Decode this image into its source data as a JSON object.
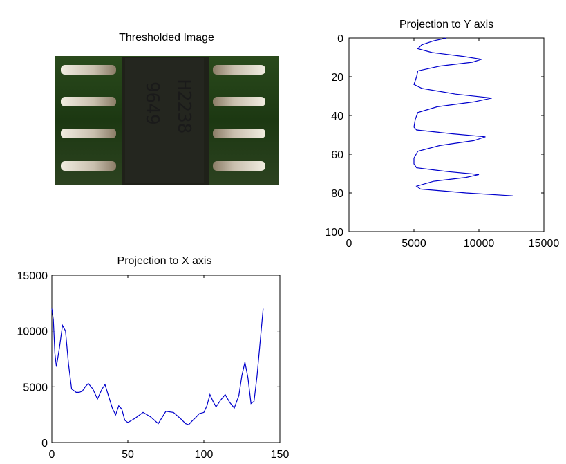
{
  "image_panel": {
    "title": "Thresholded Image",
    "chip_marking_1": "H2238",
    "chip_marking_2": "9649"
  },
  "colors": {
    "line": "#0000cc",
    "axis": "#000000",
    "chip_body": "#202219",
    "board": "#1f3d14",
    "pin": "#d8d0c0"
  },
  "chart_data": [
    {
      "type": "line",
      "title": "Projection to Y axis",
      "orientation": "vertical-profile",
      "xlim": [
        0,
        15000
      ],
      "ylim": [
        100,
        0
      ],
      "y_direction": "reversed",
      "xticks": [
        0,
        5000,
        10000,
        15000
      ],
      "yticks": [
        0,
        20,
        40,
        60,
        80,
        100
      ],
      "series": [
        {
          "x": [
            7500,
            6500,
            5600,
            5300,
            6400,
            8800,
            10200,
            9500,
            7000,
            5300,
            5200,
            5000,
            5600,
            8200,
            11000,
            9600,
            6800,
            5300,
            5100,
            5000,
            5200,
            8000,
            10500,
            9600,
            7000,
            5300,
            5000,
            5000,
            5200,
            7600,
            10000,
            9000,
            6500,
            5200,
            5500,
            9000,
            12600
          ],
          "y": [
            0,
            1.5,
            3.5,
            5.5,
            7.5,
            9.5,
            11,
            12.5,
            14.5,
            17,
            20,
            24,
            26,
            29,
            31,
            33,
            35.5,
            38.5,
            42,
            46,
            47.5,
            49.5,
            51,
            53,
            55.5,
            58.5,
            62,
            65,
            67,
            69,
            70.5,
            72,
            74,
            76.5,
            78,
            80,
            81.5
          ]
        }
      ]
    },
    {
      "type": "line",
      "title": "Projection to X axis",
      "xlim": [
        0,
        150
      ],
      "ylim": [
        0,
        15000
      ],
      "xticks": [
        0,
        50,
        100,
        150
      ],
      "yticks": [
        0,
        5000,
        10000,
        15000
      ],
      "series": [
        {
          "x": [
            0,
            1,
            2,
            3,
            5,
            7,
            9,
            11,
            13,
            16,
            18,
            20,
            22,
            24,
            27,
            30,
            33,
            35,
            37,
            40,
            42,
            44,
            46,
            48,
            50,
            55,
            60,
            65,
            70,
            75,
            80,
            85,
            88,
            90,
            92,
            95,
            97,
            100,
            102,
            104,
            106,
            108,
            111,
            114,
            117,
            120,
            123,
            125,
            127,
            129,
            131,
            133,
            135,
            137,
            139
          ],
          "y": [
            12000,
            11000,
            8000,
            6800,
            8500,
            10500,
            10000,
            7000,
            4800,
            4500,
            4500,
            4600,
            5000,
            5300,
            4800,
            3900,
            4800,
            5200,
            4300,
            3000,
            2500,
            3300,
            3000,
            2000,
            1800,
            2200,
            2700,
            2300,
            1700,
            2800,
            2700,
            2100,
            1700,
            1600,
            1900,
            2300,
            2600,
            2700,
            3300,
            4300,
            3700,
            3200,
            3800,
            4300,
            3600,
            3100,
            4200,
            6000,
            7200,
            5800,
            3500,
            3700,
            6000,
            9000,
            12000
          ]
        }
      ]
    }
  ]
}
